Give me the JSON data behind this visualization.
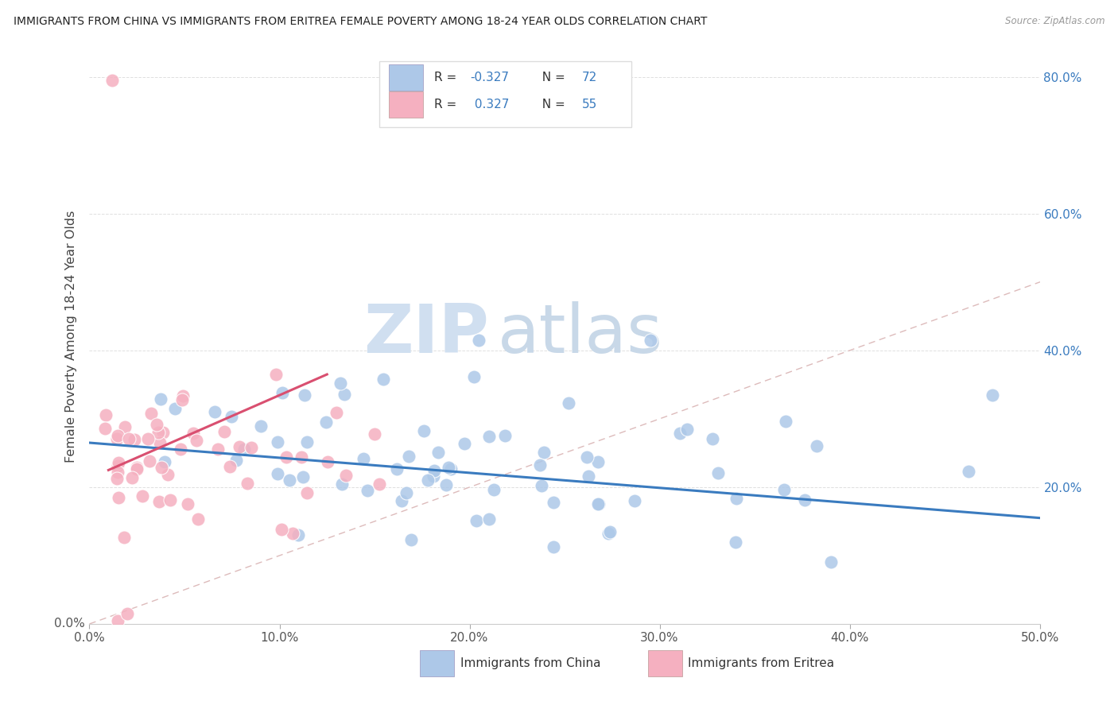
{
  "title": "IMMIGRANTS FROM CHINA VS IMMIGRANTS FROM ERITREA FEMALE POVERTY AMONG 18-24 YEAR OLDS CORRELATION CHART",
  "source": "Source: ZipAtlas.com",
  "ylabel": "Female Poverty Among 18-24 Year Olds",
  "xlim": [
    0.0,
    0.5
  ],
  "ylim": [
    0.0,
    0.84
  ],
  "xticks": [
    0.0,
    0.1,
    0.2,
    0.3,
    0.4,
    0.5
  ],
  "xticklabels": [
    "0.0%",
    "10.0%",
    "20.0%",
    "30.0%",
    "40.0%",
    "50.0%"
  ],
  "yticks_right": [
    0.2,
    0.4,
    0.6,
    0.8
  ],
  "yticklabels_right": [
    "20.0%",
    "40.0%",
    "60.0%",
    "80.0%"
  ],
  "legend_label1": "Immigrants from China",
  "legend_label2": "Immigrants from Eritrea",
  "R_china": -0.327,
  "N_china": 72,
  "R_eritrea": 0.327,
  "N_eritrea": 55,
  "china_color": "#adc8e8",
  "eritrea_color": "#f5b0c0",
  "china_line_color": "#3a7bbf",
  "eritrea_line_color": "#d94f70",
  "ref_line_color": "#ddbbbb",
  "grid_color": "#e0e0e0",
  "background_color": "#ffffff",
  "watermark_zip": "ZIP",
  "watermark_atlas": "atlas",
  "china_trend_x0": 0.0,
  "china_trend_x1": 0.5,
  "china_trend_y0": 0.265,
  "china_trend_y1": 0.155,
  "eritrea_trend_x0": 0.01,
  "eritrea_trend_x1": 0.125,
  "eritrea_trend_y0": 0.225,
  "eritrea_trend_y1": 0.365
}
